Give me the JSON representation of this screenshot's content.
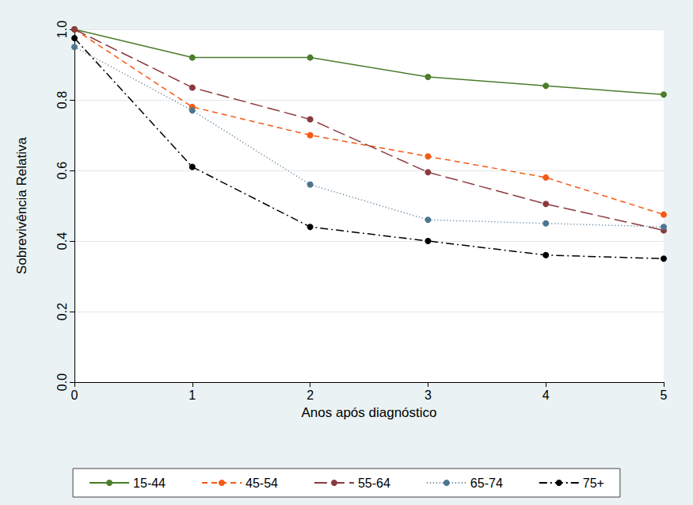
{
  "chart_data": {
    "type": "line",
    "x_label": "Anos após diagnóstico",
    "y_label": "Sobrevivência Relativa",
    "x": [
      0,
      1,
      2,
      3,
      4,
      5
    ],
    "xlim": [
      0,
      5
    ],
    "xticks": [
      0,
      1,
      2,
      3,
      4,
      5
    ],
    "ylim": [
      0,
      1
    ],
    "yticks": [
      {
        "value": 0,
        "label": "0.0"
      },
      0.2,
      0.4,
      0.6,
      0.8,
      {
        "value": 1,
        "label": "1.0"
      }
    ],
    "grid": true,
    "legend": "bottom",
    "series": [
      {
        "name": "15-44",
        "color": "#4b7d2b",
        "marker": "circle",
        "line_style": "solid",
        "values": [
          1.0,
          0.92,
          0.92,
          0.865,
          0.84,
          0.815
        ]
      },
      {
        "name": "45-54",
        "color": "#f45a14",
        "marker": "circle",
        "line_style": "dashed",
        "values": [
          1.0,
          0.78,
          0.7,
          0.64,
          0.58,
          0.475
        ]
      },
      {
        "name": "55-64",
        "color": "#8b3a3f",
        "marker": "circle",
        "line_style": "long_dash",
        "values": [
          1.0,
          0.835,
          0.745,
          0.595,
          0.505,
          0.43
        ]
      },
      {
        "name": "65-74",
        "color": "#4e7590",
        "marker": "circle",
        "line_style": "dotted",
        "values": [
          0.95,
          0.77,
          0.56,
          0.46,
          0.45,
          0.44
        ]
      },
      {
        "name": "75+",
        "color": "#000000",
        "marker": "circle",
        "line_style": "dash_dot",
        "values": [
          0.975,
          0.61,
          0.44,
          0.4,
          0.36,
          0.35
        ]
      }
    ]
  }
}
